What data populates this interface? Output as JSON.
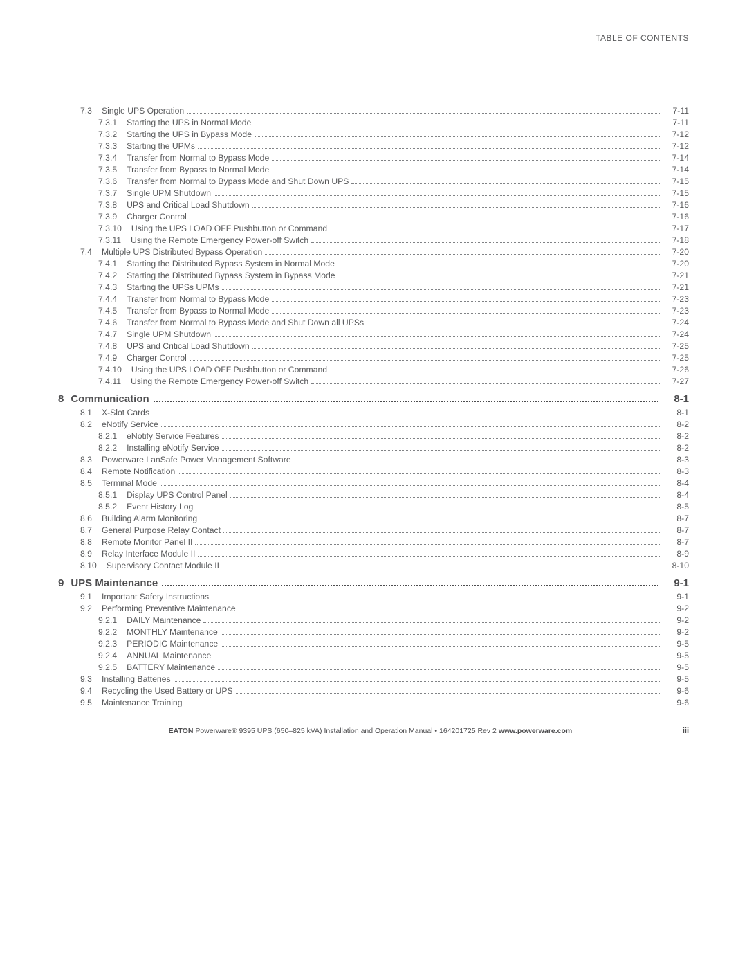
{
  "header": "TABLE OF CONTENTS",
  "rows": [
    {
      "lvl": "sec",
      "num": "7.3",
      "title": "Single UPS Operation",
      "page": "7-11"
    },
    {
      "lvl": "sub",
      "num": "7.3.1",
      "title": "Starting the UPS in Normal Mode",
      "page": "7-11"
    },
    {
      "lvl": "sub",
      "num": "7.3.2",
      "title": "Starting the UPS in Bypass Mode",
      "page": "7-12"
    },
    {
      "lvl": "sub",
      "num": "7.3.3",
      "title": "Starting the UPMs",
      "page": "7-12"
    },
    {
      "lvl": "sub",
      "num": "7.3.4",
      "title": "Transfer from Normal to Bypass Mode",
      "page": "7-14"
    },
    {
      "lvl": "sub",
      "num": "7.3.5",
      "title": "Transfer from Bypass to Normal Mode",
      "page": "7-14"
    },
    {
      "lvl": "sub",
      "num": "7.3.6",
      "title": "Transfer from Normal to Bypass Mode and Shut Down UPS",
      "page": "7-15"
    },
    {
      "lvl": "sub",
      "num": "7.3.7",
      "title": "Single UPM Shutdown",
      "page": "7-15"
    },
    {
      "lvl": "sub",
      "num": "7.3.8",
      "title": "UPS and Critical Load Shutdown",
      "page": "7-16"
    },
    {
      "lvl": "sub",
      "num": "7.3.9",
      "title": "Charger Control",
      "page": "7-16"
    },
    {
      "lvl": "sub",
      "num": "7.3.10",
      "title": "Using the UPS LOAD OFF Pushbutton or Command",
      "page": "7-17"
    },
    {
      "lvl": "sub",
      "num": "7.3.11",
      "title": "Using the Remote Emergency Power-off Switch",
      "page": "7-18"
    },
    {
      "lvl": "sec",
      "num": "7.4",
      "title": "Multiple UPS Distributed Bypass Operation",
      "page": "7-20"
    },
    {
      "lvl": "sub",
      "num": "7.4.1",
      "title": "Starting the Distributed Bypass System in Normal Mode",
      "page": "7-20"
    },
    {
      "lvl": "sub",
      "num": "7.4.2",
      "title": "Starting the Distributed Bypass System in Bypass Mode",
      "page": "7-21"
    },
    {
      "lvl": "sub",
      "num": "7.4.3",
      "title": "Starting the UPSs UPMs",
      "page": "7-21"
    },
    {
      "lvl": "sub",
      "num": "7.4.4",
      "title": "Transfer from Normal to Bypass Mode",
      "page": "7-23"
    },
    {
      "lvl": "sub",
      "num": "7.4.5",
      "title": "Transfer from Bypass to Normal Mode",
      "page": "7-23"
    },
    {
      "lvl": "sub",
      "num": "7.4.6",
      "title": "Transfer from Normal to Bypass Mode and Shut Down all UPSs",
      "page": "7-24"
    },
    {
      "lvl": "sub",
      "num": "7.4.7",
      "title": "Single UPM Shutdown",
      "page": "7-24"
    },
    {
      "lvl": "sub",
      "num": "7.4.8",
      "title": "UPS and Critical Load Shutdown",
      "page": "7-25"
    },
    {
      "lvl": "sub",
      "num": "7.4.9",
      "title": "Charger Control",
      "page": "7-25"
    },
    {
      "lvl": "sub",
      "num": "7.4.10",
      "title": "Using the UPS LOAD OFF Pushbutton or Command",
      "page": "7-26"
    },
    {
      "lvl": "sub",
      "num": "7.4.11",
      "title": "Using the Remote Emergency Power-off Switch",
      "page": "7-27"
    },
    {
      "lvl": "chap",
      "num": "8",
      "title": "Communication",
      "page": "8-1"
    },
    {
      "lvl": "sec",
      "num": "8.1",
      "title": "X-Slot Cards",
      "page": "8-1"
    },
    {
      "lvl": "sec",
      "num": "8.2",
      "title": "eNotify Service",
      "page": "8-2"
    },
    {
      "lvl": "sub",
      "num": "8.2.1",
      "title": "eNotify Service Features",
      "page": "8-2"
    },
    {
      "lvl": "sub",
      "num": "8.2.2",
      "title": "Installing eNotify Service",
      "page": "8-2"
    },
    {
      "lvl": "sec",
      "num": "8.3",
      "title": "Powerware LanSafe Power Management Software",
      "page": "8-3"
    },
    {
      "lvl": "sec",
      "num": "8.4",
      "title": "Remote Notification",
      "page": "8-3"
    },
    {
      "lvl": "sec",
      "num": "8.5",
      "title": "Terminal Mode",
      "page": "8-4"
    },
    {
      "lvl": "sub",
      "num": "8.5.1",
      "title": "Display UPS Control Panel",
      "page": "8-4"
    },
    {
      "lvl": "sub",
      "num": "8.5.2",
      "title": "Event History Log",
      "page": "8-5"
    },
    {
      "lvl": "sec",
      "num": "8.6",
      "title": "Building Alarm Monitoring",
      "page": "8-7"
    },
    {
      "lvl": "sec",
      "num": "8.7",
      "title": "General Purpose Relay Contact",
      "page": "8-7"
    },
    {
      "lvl": "sec",
      "num": "8.8",
      "title": "Remote Monitor Panel II",
      "page": "8-7"
    },
    {
      "lvl": "sec",
      "num": "8.9",
      "title": "Relay Interface Module II",
      "page": "8-9"
    },
    {
      "lvl": "sec",
      "num": "8.10",
      "title": "Supervisory Contact Module II",
      "page": "8-10"
    },
    {
      "lvl": "chap",
      "num": "9",
      "title": "UPS Maintenance",
      "page": "9-1"
    },
    {
      "lvl": "sec",
      "num": "9.1",
      "title": "Important Safety Instructions",
      "page": "9-1"
    },
    {
      "lvl": "sec",
      "num": "9.2",
      "title": "Performing Preventive Maintenance",
      "page": "9-2"
    },
    {
      "lvl": "sub",
      "num": "9.2.1",
      "title": "DAILY Maintenance",
      "page": "9-2"
    },
    {
      "lvl": "sub",
      "num": "9.2.2",
      "title": "MONTHLY Maintenance",
      "page": "9-2"
    },
    {
      "lvl": "sub",
      "num": "9.2.3",
      "title": "PERIODIC Maintenance",
      "page": "9-5"
    },
    {
      "lvl": "sub",
      "num": "9.2.4",
      "title": "ANNUAL Maintenance",
      "page": "9-5"
    },
    {
      "lvl": "sub",
      "num": "9.2.5",
      "title": "BATTERY Maintenance",
      "page": "9-5"
    },
    {
      "lvl": "sec",
      "num": "9.3",
      "title": "Installing Batteries",
      "page": "9-5"
    },
    {
      "lvl": "sec",
      "num": "9.4",
      "title": "Recycling the Used Battery or UPS",
      "page": "9-6"
    },
    {
      "lvl": "sec",
      "num": "9.5",
      "title": "Maintenance Training",
      "page": "9-6"
    }
  ],
  "footer": {
    "brand": "EATON",
    "product": " Powerware® 9395 UPS (650–825 kVA) Installation and Operation Manual  •  164201725 Rev 2 ",
    "url": "www.powerware.com",
    "page": "iii"
  }
}
